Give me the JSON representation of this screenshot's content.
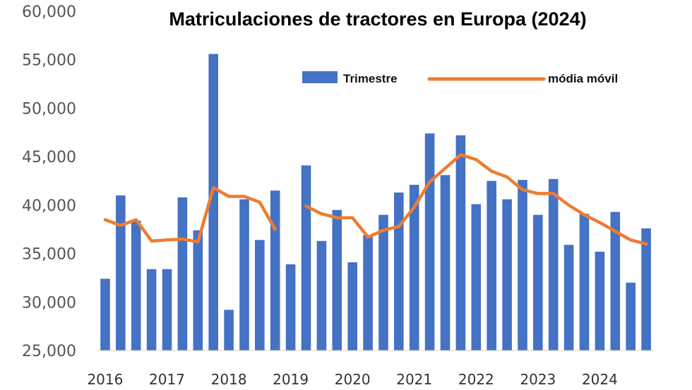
{
  "chart_data": {
    "type": "bar",
    "title": "Matriculaciones de tractores en Europa (2024)",
    "xlabel": "",
    "ylabel": "",
    "ylim": [
      25000,
      60000
    ],
    "y_ticks": [
      "25,000",
      "30,000",
      "35,000",
      "40,000",
      "45,000",
      "50,000",
      "55,000",
      "60,000"
    ],
    "y_tick_values": [
      25000,
      30000,
      35000,
      40000,
      45000,
      50000,
      55000,
      60000
    ],
    "x_ticks": [
      "2016",
      "2017",
      "2018",
      "2019",
      "2020",
      "2021",
      "2022",
      "2023",
      "2024"
    ],
    "grid": false,
    "legend_position": "top-right",
    "colors": {
      "bars": "#4472C4",
      "line": "#ED7D31"
    },
    "series": [
      {
        "name": "Trimestre",
        "type": "bar",
        "values": [
          32400,
          41000,
          38400,
          33400,
          33400,
          40800,
          37400,
          55600,
          29200,
          40600,
          36400,
          41500,
          33900,
          44100,
          36300,
          39500,
          34100,
          36900,
          39000,
          41300,
          42100,
          47400,
          43100,
          47200,
          40100,
          42500,
          40600,
          42600,
          39000,
          42700,
          35900,
          39100,
          35200,
          39300,
          32000,
          37600
        ]
      },
      {
        "name": "módia móvil",
        "type": "line",
        "values": [
          38500,
          37900,
          38500,
          36300,
          36400,
          36500,
          36200,
          41800,
          40900,
          40900,
          40300,
          37500,
          null,
          39900,
          39100,
          38700,
          38700,
          36700,
          37400,
          37800,
          39800,
          42400,
          43800,
          45200,
          44700,
          43500,
          42900,
          41600,
          41200,
          41200,
          40000,
          39000,
          38200,
          37300,
          36400,
          36000
        ]
      }
    ]
  }
}
